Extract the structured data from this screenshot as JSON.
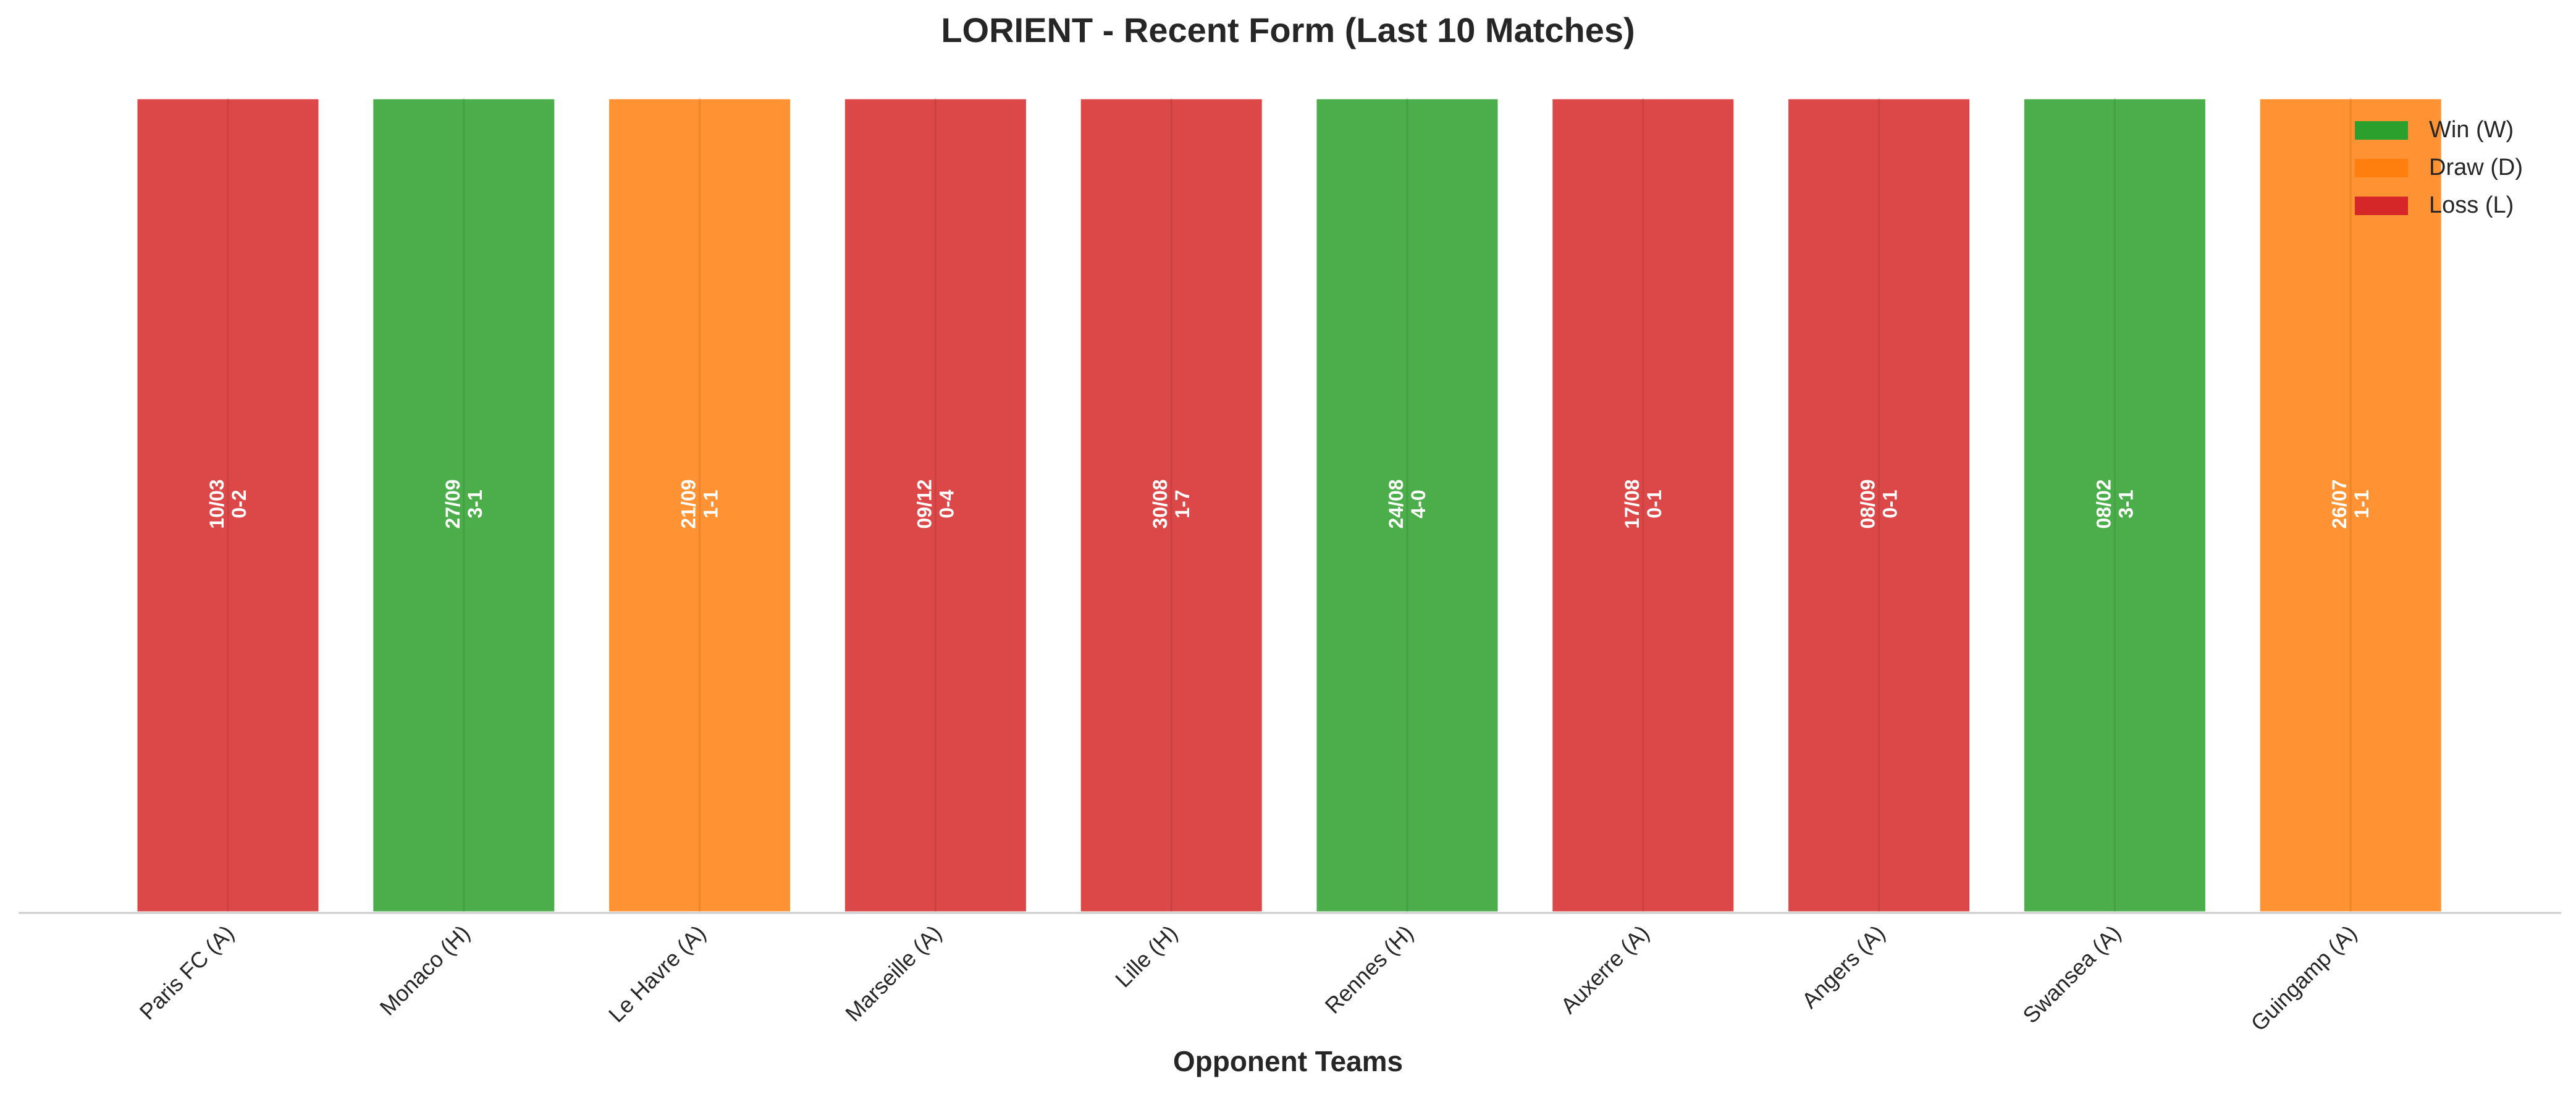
{
  "title": "LORIENT - Recent Form (Last 10 Matches)",
  "chart_data": {
    "type": "bar",
    "title": "LORIENT - Recent Form (Last 10 Matches)",
    "xlabel": "Opponent Teams",
    "ylabel": "",
    "grid": false,
    "legend_position": "top-right",
    "categories": [
      "Paris FC (A)",
      "Monaco (H)",
      "Le Havre (A)",
      "Marseille (A)",
      "Lille (H)",
      "Rennes (H)",
      "Auxerre (A)",
      "Angers (A)",
      "Swansea (A)",
      "Guingamp (A)"
    ],
    "values": [
      1,
      1,
      1,
      1,
      1,
      1,
      1,
      1,
      1,
      1
    ],
    "results": [
      "L",
      "W",
      "D",
      "L",
      "L",
      "W",
      "L",
      "L",
      "W",
      "D"
    ],
    "dates": [
      "10/03",
      "27/09",
      "21/09",
      "09/12",
      "30/08",
      "24/08",
      "17/08",
      "08/09",
      "08/02",
      "26/07"
    ],
    "scores": [
      "0-2",
      "3-1",
      "1-1",
      "0-4",
      "1-7",
      "4-0",
      "0-1",
      "0-1",
      "3-1",
      "1-1"
    ],
    "legend": [
      {
        "key": "W",
        "label": "Win (W)",
        "color": "#2ca02c"
      },
      {
        "key": "D",
        "label": "Draw (D)",
        "color": "#ff7f0e"
      },
      {
        "key": "L",
        "label": "Loss (L)",
        "color": "#d62728"
      }
    ]
  }
}
